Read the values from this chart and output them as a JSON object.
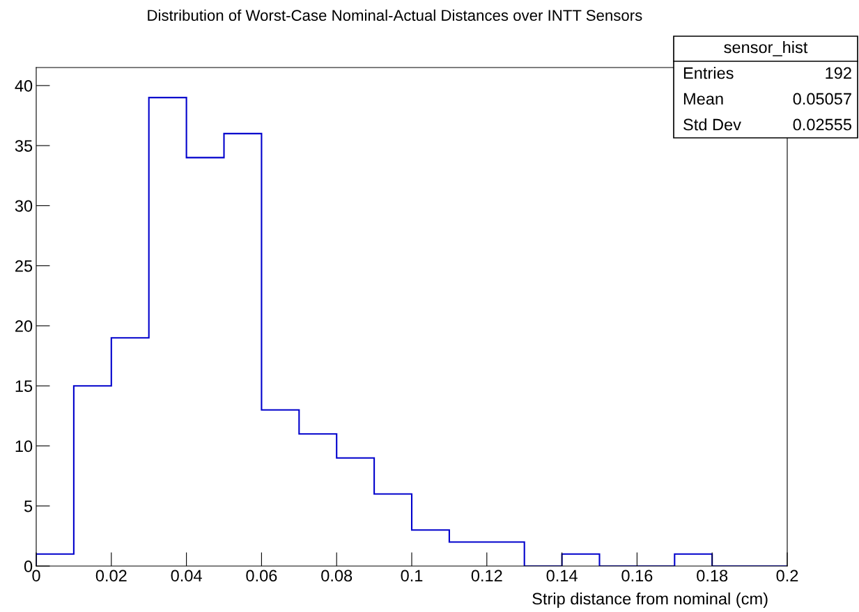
{
  "chart_data": {
    "type": "histogram",
    "title": "Distribution of Worst-Case Nominal-Actual Distances over INTT Sensors",
    "xlabel": "Strip distance from nominal (cm)",
    "bins": [
      0,
      0.01,
      0.02,
      0.03,
      0.04,
      0.05,
      0.06,
      0.07,
      0.08,
      0.09,
      0.1,
      0.11,
      0.12,
      0.13,
      0.14,
      0.15,
      0.16,
      0.17,
      0.18,
      0.19,
      0.2
    ],
    "values": [
      1,
      15,
      19,
      39,
      34,
      36,
      13,
      11,
      9,
      6,
      3,
      2,
      2,
      0,
      1,
      0,
      0,
      1,
      0,
      0
    ],
    "color": "#0000cc",
    "xlim": [
      0,
      0.2
    ],
    "xticks": [
      0,
      0.02,
      0.04,
      0.06,
      0.08,
      0.1,
      0.12,
      0.14,
      0.16,
      0.18,
      0.2
    ],
    "ylim": [
      0,
      41.5
    ],
    "yticks": [
      0,
      5,
      10,
      15,
      20,
      25,
      30,
      35,
      40
    ],
    "grid": false,
    "legend": false,
    "annotations": [
      "sensor_hist",
      "Entries",
      "192",
      "Mean",
      "0.05057",
      "Std Dev",
      "0.02555"
    ]
  }
}
